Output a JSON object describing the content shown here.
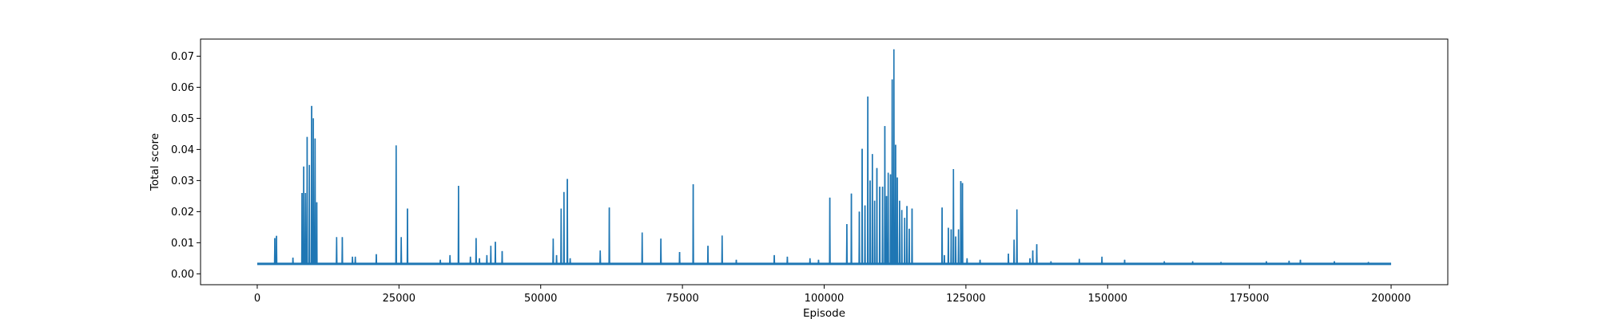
{
  "chart_data": {
    "type": "line",
    "title": "",
    "xlabel": "Episode",
    "ylabel": "Total score",
    "xlim": [
      -10000,
      210000
    ],
    "ylim": [
      -0.0035,
      0.0755
    ],
    "grid": false,
    "line_color": "#1f77b4",
    "x_ticks": [
      0,
      25000,
      50000,
      75000,
      100000,
      125000,
      150000,
      175000,
      200000
    ],
    "x_tick_labels": [
      "0",
      "25000",
      "50000",
      "75000",
      "100000",
      "125000",
      "150000",
      "175000",
      "200000"
    ],
    "y_ticks": [
      0.0,
      0.01,
      0.02,
      0.03,
      0.04,
      0.05,
      0.06,
      0.07
    ],
    "y_tick_labels": [
      "0.00",
      "0.01",
      "0.02",
      "0.03",
      "0.04",
      "0.05",
      "0.06",
      "0.07"
    ],
    "series": [
      {
        "baseline": 0.0032,
        "x_end": 200000,
        "peaks": [
          [
            3100,
            0.0115
          ],
          [
            3400,
            0.0122
          ],
          [
            6300,
            0.0052
          ],
          [
            7900,
            0.026
          ],
          [
            8200,
            0.0345
          ],
          [
            8500,
            0.026
          ],
          [
            8800,
            0.044
          ],
          [
            9200,
            0.035
          ],
          [
            9600,
            0.054
          ],
          [
            9900,
            0.05
          ],
          [
            10200,
            0.0435
          ],
          [
            10500,
            0.023
          ],
          [
            14000,
            0.0118
          ],
          [
            15000,
            0.0118
          ],
          [
            16800,
            0.0055
          ],
          [
            17300,
            0.0055
          ],
          [
            21000,
            0.0063
          ],
          [
            24500,
            0.0413
          ],
          [
            25400,
            0.0118
          ],
          [
            26500,
            0.021
          ],
          [
            32300,
            0.0045
          ],
          [
            34000,
            0.006
          ],
          [
            35500,
            0.0283
          ],
          [
            37600,
            0.0055
          ],
          [
            38600,
            0.0115
          ],
          [
            39200,
            0.005
          ],
          [
            40500,
            0.006
          ],
          [
            41200,
            0.009
          ],
          [
            42000,
            0.0103
          ],
          [
            43200,
            0.0073
          ],
          [
            52200,
            0.0113
          ],
          [
            52800,
            0.006
          ],
          [
            53600,
            0.021
          ],
          [
            54100,
            0.0263
          ],
          [
            54700,
            0.0305
          ],
          [
            55200,
            0.005
          ],
          [
            60500,
            0.0075
          ],
          [
            62100,
            0.0213
          ],
          [
            67900,
            0.0133
          ],
          [
            71200,
            0.0113
          ],
          [
            74500,
            0.007
          ],
          [
            76900,
            0.0288
          ],
          [
            79500,
            0.009
          ],
          [
            82000,
            0.0123
          ],
          [
            84500,
            0.0045
          ],
          [
            91200,
            0.006
          ],
          [
            93500,
            0.0055
          ],
          [
            97500,
            0.005
          ],
          [
            99000,
            0.0045
          ],
          [
            101000,
            0.0245
          ],
          [
            104000,
            0.016
          ],
          [
            104800,
            0.0258
          ],
          [
            106200,
            0.02
          ],
          [
            106700,
            0.0402
          ],
          [
            107200,
            0.022
          ],
          [
            107700,
            0.057
          ],
          [
            108100,
            0.03
          ],
          [
            108500,
            0.0385
          ],
          [
            108900,
            0.0235
          ],
          [
            109300,
            0.034
          ],
          [
            109800,
            0.028
          ],
          [
            110300,
            0.028
          ],
          [
            110700,
            0.0475
          ],
          [
            111000,
            0.025
          ],
          [
            111300,
            0.0325
          ],
          [
            111700,
            0.032
          ],
          [
            112000,
            0.0625
          ],
          [
            112300,
            0.0722
          ],
          [
            112600,
            0.0415
          ],
          [
            112900,
            0.031
          ],
          [
            113300,
            0.0235
          ],
          [
            113700,
            0.0205
          ],
          [
            114200,
            0.018
          ],
          [
            114600,
            0.0218
          ],
          [
            115000,
            0.0145
          ],
          [
            115500,
            0.021
          ],
          [
            120800,
            0.0213
          ],
          [
            121200,
            0.006
          ],
          [
            121900,
            0.0148
          ],
          [
            122400,
            0.0143
          ],
          [
            122800,
            0.0337
          ],
          [
            123200,
            0.012
          ],
          [
            123700,
            0.0143
          ],
          [
            124100,
            0.0298
          ],
          [
            124400,
            0.0292
          ],
          [
            125200,
            0.005
          ],
          [
            127500,
            0.0045
          ],
          [
            132500,
            0.0065
          ],
          [
            133500,
            0.011
          ],
          [
            134000,
            0.0207
          ],
          [
            136300,
            0.005
          ],
          [
            136800,
            0.0075
          ],
          [
            137500,
            0.0095
          ],
          [
            140000,
            0.004
          ],
          [
            145000,
            0.0048
          ],
          [
            149000,
            0.0055
          ],
          [
            153000,
            0.0045
          ],
          [
            160000,
            0.004
          ],
          [
            165000,
            0.004
          ],
          [
            170000,
            0.0038
          ],
          [
            178000,
            0.004
          ],
          [
            182000,
            0.0042
          ],
          [
            184000,
            0.0045
          ],
          [
            190000,
            0.004
          ],
          [
            196000,
            0.0038
          ]
        ]
      }
    ]
  }
}
